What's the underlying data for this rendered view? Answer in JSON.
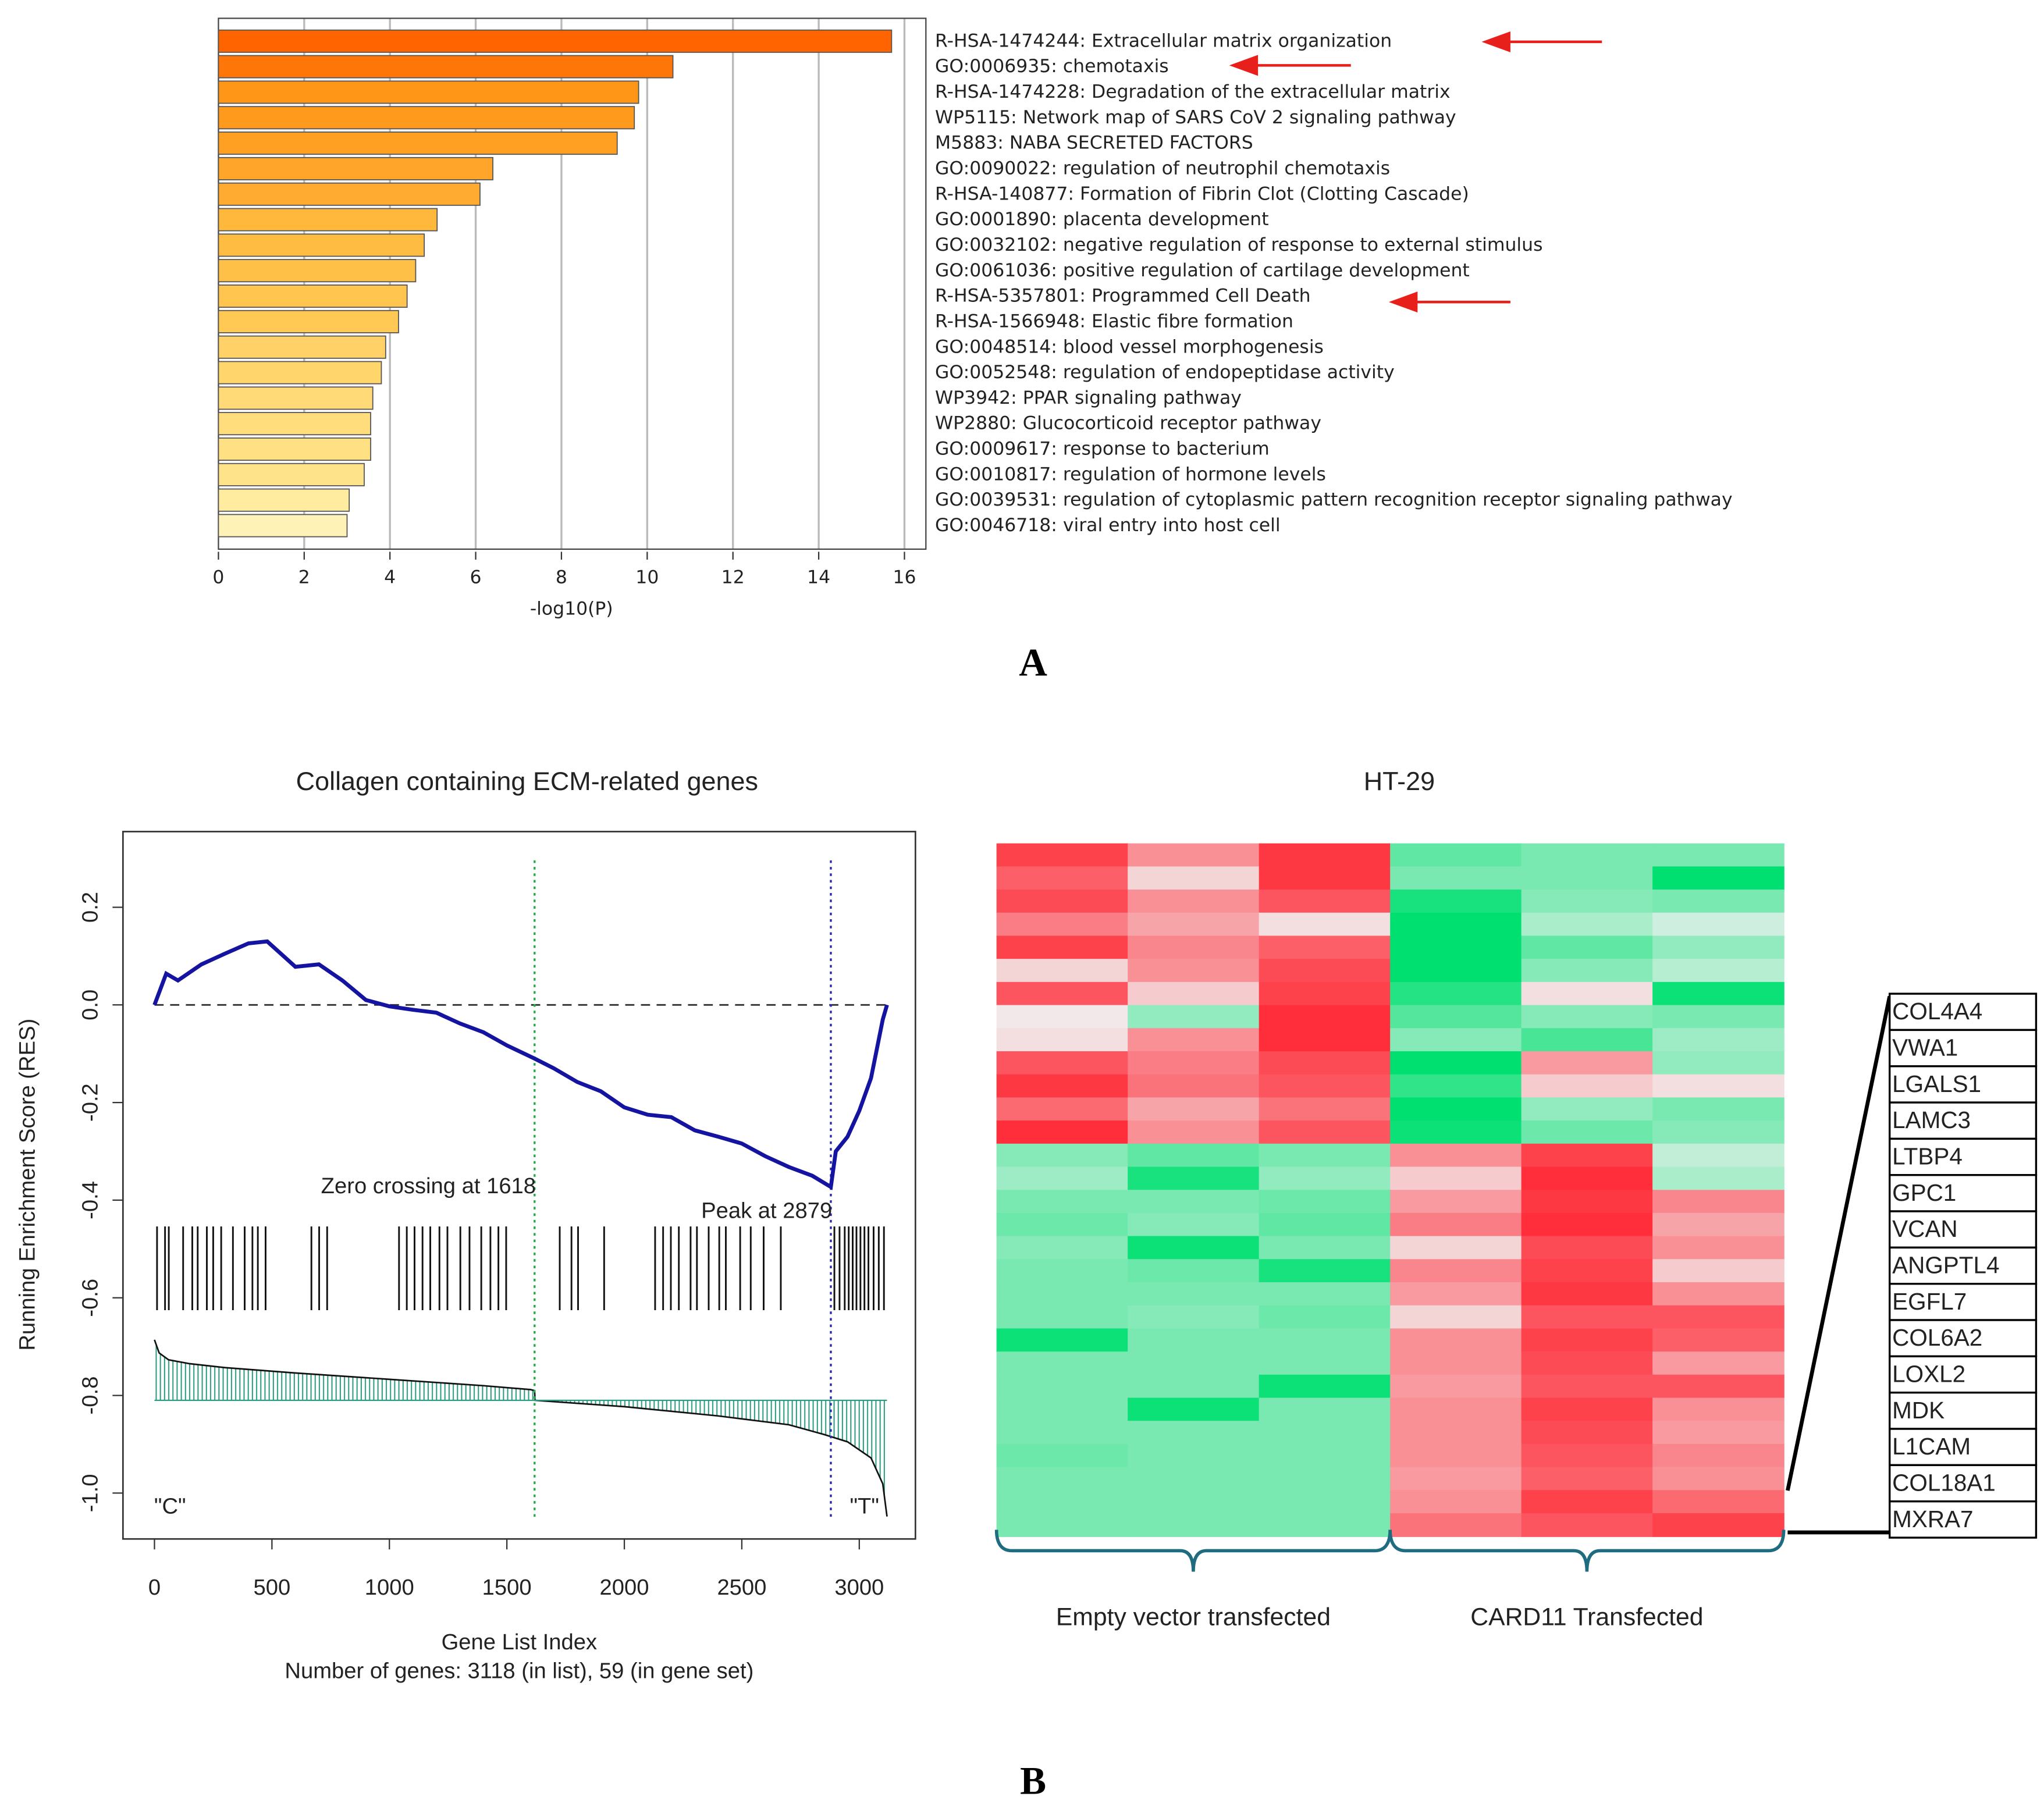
{
  "panel_labels": [
    "A",
    "B"
  ],
  "chart_data": [
    {
      "type": "bar",
      "orientation": "horizontal",
      "xlabel": "-log10(P)",
      "categories": [
        "R-HSA-1474244: Extracellular matrix organization",
        "GO:0006935: chemotaxis",
        "R-HSA-1474228: Degradation of the extracellular matrix",
        "WP5115: Network map of SARS CoV 2 signaling pathway",
        "M5883: NABA SECRETED FACTORS",
        "GO:0090022: regulation of neutrophil chemotaxis",
        "R-HSA-140877: Formation of Fibrin Clot (Clotting Cascade)",
        "GO:0001890: placenta development",
        "GO:0032102: negative regulation of response to external stimulus",
        "GO:0061036: positive regulation of cartilage development",
        "R-HSA-5357801: Programmed Cell Death",
        "R-HSA-1566948: Elastic fibre formation",
        "GO:0048514: blood vessel morphogenesis",
        "GO:0052548: regulation of endopeptidase activity",
        "WP3942: PPAR signaling pathway",
        "WP2880: Glucocorticoid receptor pathway",
        "GO:0009617: response to bacterium",
        "GO:0010817: regulation of hormone levels",
        "GO:0039531: regulation of cytoplasmic pattern recognition receptor signaling pathway",
        "GO:0046718: viral entry into host cell"
      ],
      "values": [
        15.7,
        10.6,
        9.8,
        9.7,
        9.3,
        6.4,
        6.1,
        5.1,
        4.8,
        4.6,
        4.4,
        4.2,
        3.9,
        3.8,
        3.6,
        3.55,
        3.55,
        3.4,
        3.05,
        3.0
      ],
      "colors": [
        "#ff6400",
        "#ff7608",
        "#ff9618",
        "#ff9a1c",
        "#ffa022",
        "#ffa62a",
        "#ffaa30",
        "#ffb83c",
        "#ffbc42",
        "#ffc048",
        "#ffc54e",
        "#ffc954",
        "#ffd166",
        "#ffd56c",
        "#ffda76",
        "#ffdc7c",
        "#ffe082",
        "#ffe38a",
        "#ffec9e",
        "#fff2b6"
      ],
      "xlim": [
        0,
        16.5
      ],
      "xticks": [
        0,
        2,
        4,
        6,
        8,
        10,
        12,
        14,
        16
      ],
      "grid": true
    },
    {
      "type": "line",
      "title": "Collagen containing ECM-related genes",
      "xlabel": "Gene List Index",
      "subtitle": "Number of genes: 3118 (in list), 59 (in gene set)",
      "ylabel": "Running Enrichment Score (RES)",
      "color": "#1414a0",
      "x": [
        0,
        50,
        100,
        200,
        300,
        400,
        480,
        600,
        700,
        800,
        900,
        1000,
        1100,
        1200,
        1300,
        1400,
        1500,
        1618,
        1700,
        1800,
        1900,
        2000,
        2100,
        2200,
        2300,
        2400,
        2500,
        2600,
        2700,
        2800,
        2879,
        2900,
        2950,
        3000,
        3050,
        3100,
        3118
      ],
      "values": [
        0,
        0.064,
        0.05,
        0.083,
        0.105,
        0.126,
        0.13,
        0.078,
        0.083,
        0.05,
        0.01,
        -0.003,
        -0.01,
        -0.016,
        -0.038,
        -0.056,
        -0.083,
        -0.11,
        -0.13,
        -0.158,
        -0.177,
        -0.21,
        -0.225,
        -0.23,
        -0.257,
        -0.27,
        -0.284,
        -0.31,
        -0.332,
        -0.35,
        -0.373,
        -0.3,
        -0.27,
        -0.217,
        -0.15,
        -0.03,
        0
      ],
      "hline": 0,
      "xlim": [
        -134,
        3239
      ],
      "ylim": [
        -1.094,
        0.355
      ],
      "xticks": [
        0,
        500,
        1000,
        1500,
        2000,
        2500,
        3000
      ],
      "yticks": [
        0.2,
        {
          "value": 0,
          "label": "0.0"
        },
        -0.2,
        -0.4,
        -0.6,
        -0.8,
        {
          "value": -1,
          "label": "-1.0"
        }
      ],
      "hits": [
        11,
        45,
        61,
        122,
        161,
        184,
        223,
        250,
        284,
        334,
        384,
        417,
        440,
        473,
        668,
        701,
        735,
        1041,
        1074,
        1107,
        1141,
        1174,
        1213,
        1247,
        1302,
        1341,
        1391,
        1430,
        1464,
        1497,
        1725,
        1775,
        1803,
        1914,
        2131,
        2165,
        2198,
        2232,
        2282,
        2309,
        2359,
        2404,
        2432,
        2493,
        2538,
        2593,
        2666,
        2894,
        2916,
        2938,
        2955,
        2972,
        2988,
        3005,
        3022,
        3039,
        3061,
        3083,
        3105
      ],
      "ranked_metric": {
        "baseline": -0.81,
        "x": [
          0,
          20,
          60,
          150,
          300,
          600,
          1000,
          1400,
          1600,
          1618,
          1620,
          2000,
          2400,
          2700,
          2850,
          2950,
          3050,
          3100,
          3118
        ],
        "values": [
          -0.686,
          -0.713,
          -0.727,
          -0.735,
          -0.743,
          -0.754,
          -0.767,
          -0.78,
          -0.788,
          -0.79,
          -0.81,
          -0.823,
          -0.842,
          -0.86,
          -0.88,
          -0.895,
          -0.928,
          -0.981,
          -1.048
        ]
      },
      "reference_lines": [
        {
          "x": 1618,
          "color": "#22aa44",
          "label": "Zero crossing at 1618"
        },
        {
          "x": 2879,
          "color": "#2a2aa8",
          "label": "Peak at 2879"
        }
      ],
      "corner_labels": [
        "\"C\"",
        "\"T\""
      ]
    },
    {
      "type": "heatmap",
      "title": "HT-29",
      "zlim": [
        -2,
        2
      ],
      "colorscale": {
        "low": "#00e070",
        "mid": "#f2f2f2",
        "high": "#ff2e3a"
      },
      "groups": [
        {
          "name": "Empty vector transfected",
          "columns": 3
        },
        {
          "name": "CARD11 Transfected",
          "columns": 3
        }
      ],
      "z": [
        [
          1.8,
          1.0,
          1.9,
          -1.2,
          -1.0,
          -1.0
        ],
        [
          1.5,
          0.3,
          1.9,
          -1.0,
          -1.0,
          -2.0
        ],
        [
          1.7,
          1.0,
          1.6,
          -1.8,
          -0.9,
          -1.0
        ],
        [
          1.2,
          0.8,
          0.2,
          -2.0,
          -0.6,
          -0.3
        ],
        [
          1.8,
          1.1,
          1.5,
          -2.0,
          -1.2,
          -0.8
        ],
        [
          0.3,
          1.0,
          1.7,
          -2.0,
          -0.9,
          -0.5
        ],
        [
          1.6,
          0.4,
          1.8,
          -1.7,
          0.2,
          -1.9
        ],
        [
          0.1,
          -0.8,
          2.0,
          -1.3,
          -0.9,
          -1.0
        ],
        [
          0.2,
          1.0,
          2.0,
          -0.9,
          -1.4,
          -0.7
        ],
        [
          1.6,
          1.2,
          1.7,
          -2.0,
          0.9,
          -0.8
        ],
        [
          1.9,
          1.3,
          1.6,
          -1.6,
          0.4,
          0.2
        ],
        [
          1.4,
          0.8,
          1.3,
          -2.0,
          -0.8,
          -1.0
        ],
        [
          2.0,
          1.0,
          1.6,
          -1.9,
          -1.1,
          -0.9
        ],
        [
          -0.9,
          -1.2,
          -1.0,
          1.0,
          1.8,
          -0.4
        ],
        [
          -0.7,
          -1.8,
          -0.8,
          0.4,
          2.0,
          -0.6
        ],
        [
          -1.0,
          -1.0,
          -1.1,
          0.9,
          1.9,
          1.1
        ],
        [
          -1.1,
          -0.9,
          -1.2,
          1.2,
          2.0,
          0.8
        ],
        [
          -0.9,
          -1.9,
          -1.0,
          0.3,
          1.7,
          1.0
        ],
        [
          -1.0,
          -1.1,
          -1.8,
          1.1,
          1.8,
          0.4
        ],
        [
          -1.0,
          -1.0,
          -1.0,
          0.9,
          1.9,
          1.0
        ],
        [
          -1.0,
          -0.9,
          -1.1,
          0.3,
          1.6,
          1.6
        ],
        [
          -1.9,
          -1.0,
          -1.0,
          1.0,
          1.8,
          1.5
        ],
        [
          -1.0,
          -1.0,
          -1.0,
          1.0,
          1.7,
          0.9
        ],
        [
          -1.0,
          -1.0,
          -1.9,
          0.9,
          1.6,
          1.6
        ],
        [
          -1.0,
          -1.9,
          -1.0,
          1.0,
          1.8,
          1.0
        ],
        [
          -1.0,
          -1.0,
          -1.0,
          1.0,
          1.7,
          0.9
        ],
        [
          -1.1,
          -1.0,
          -1.0,
          1.0,
          1.6,
          1.1
        ],
        [
          -1.0,
          -1.0,
          -1.0,
          0.9,
          1.5,
          1.0
        ],
        [
          -1.0,
          -1.0,
          -1.0,
          1.0,
          1.8,
          1.4
        ],
        [
          -1.0,
          -1.0,
          -1.0,
          1.3,
          1.6,
          1.8
        ]
      ],
      "genes": [
        {
          "name": "COL4A4",
          "color": "#111111"
        },
        {
          "name": "VWA1",
          "color": "#111111"
        },
        {
          "name": "LGALS1",
          "color": "#111111"
        },
        {
          "name": "LAMC3",
          "color": "#111111"
        },
        {
          "name": "LTBP4",
          "color": "#111111"
        },
        {
          "name": "GPC1",
          "color": "#111111"
        },
        {
          "name": "VCAN",
          "color": "#111111"
        },
        {
          "name": "ANGPTL4",
          "color": "#e8201c"
        },
        {
          "name": "EGFL7",
          "color": "#111111"
        },
        {
          "name": "COL6A2",
          "color": "#e8201c"
        },
        {
          "name": "LOXL2",
          "color": "#111111"
        },
        {
          "name": "MDK",
          "color": "#e8201c"
        },
        {
          "name": "L1CAM",
          "color": "#111111"
        },
        {
          "name": "COL18A1",
          "color": "#111111"
        },
        {
          "name": "MXRA7",
          "color": "#111111"
        }
      ]
    }
  ]
}
